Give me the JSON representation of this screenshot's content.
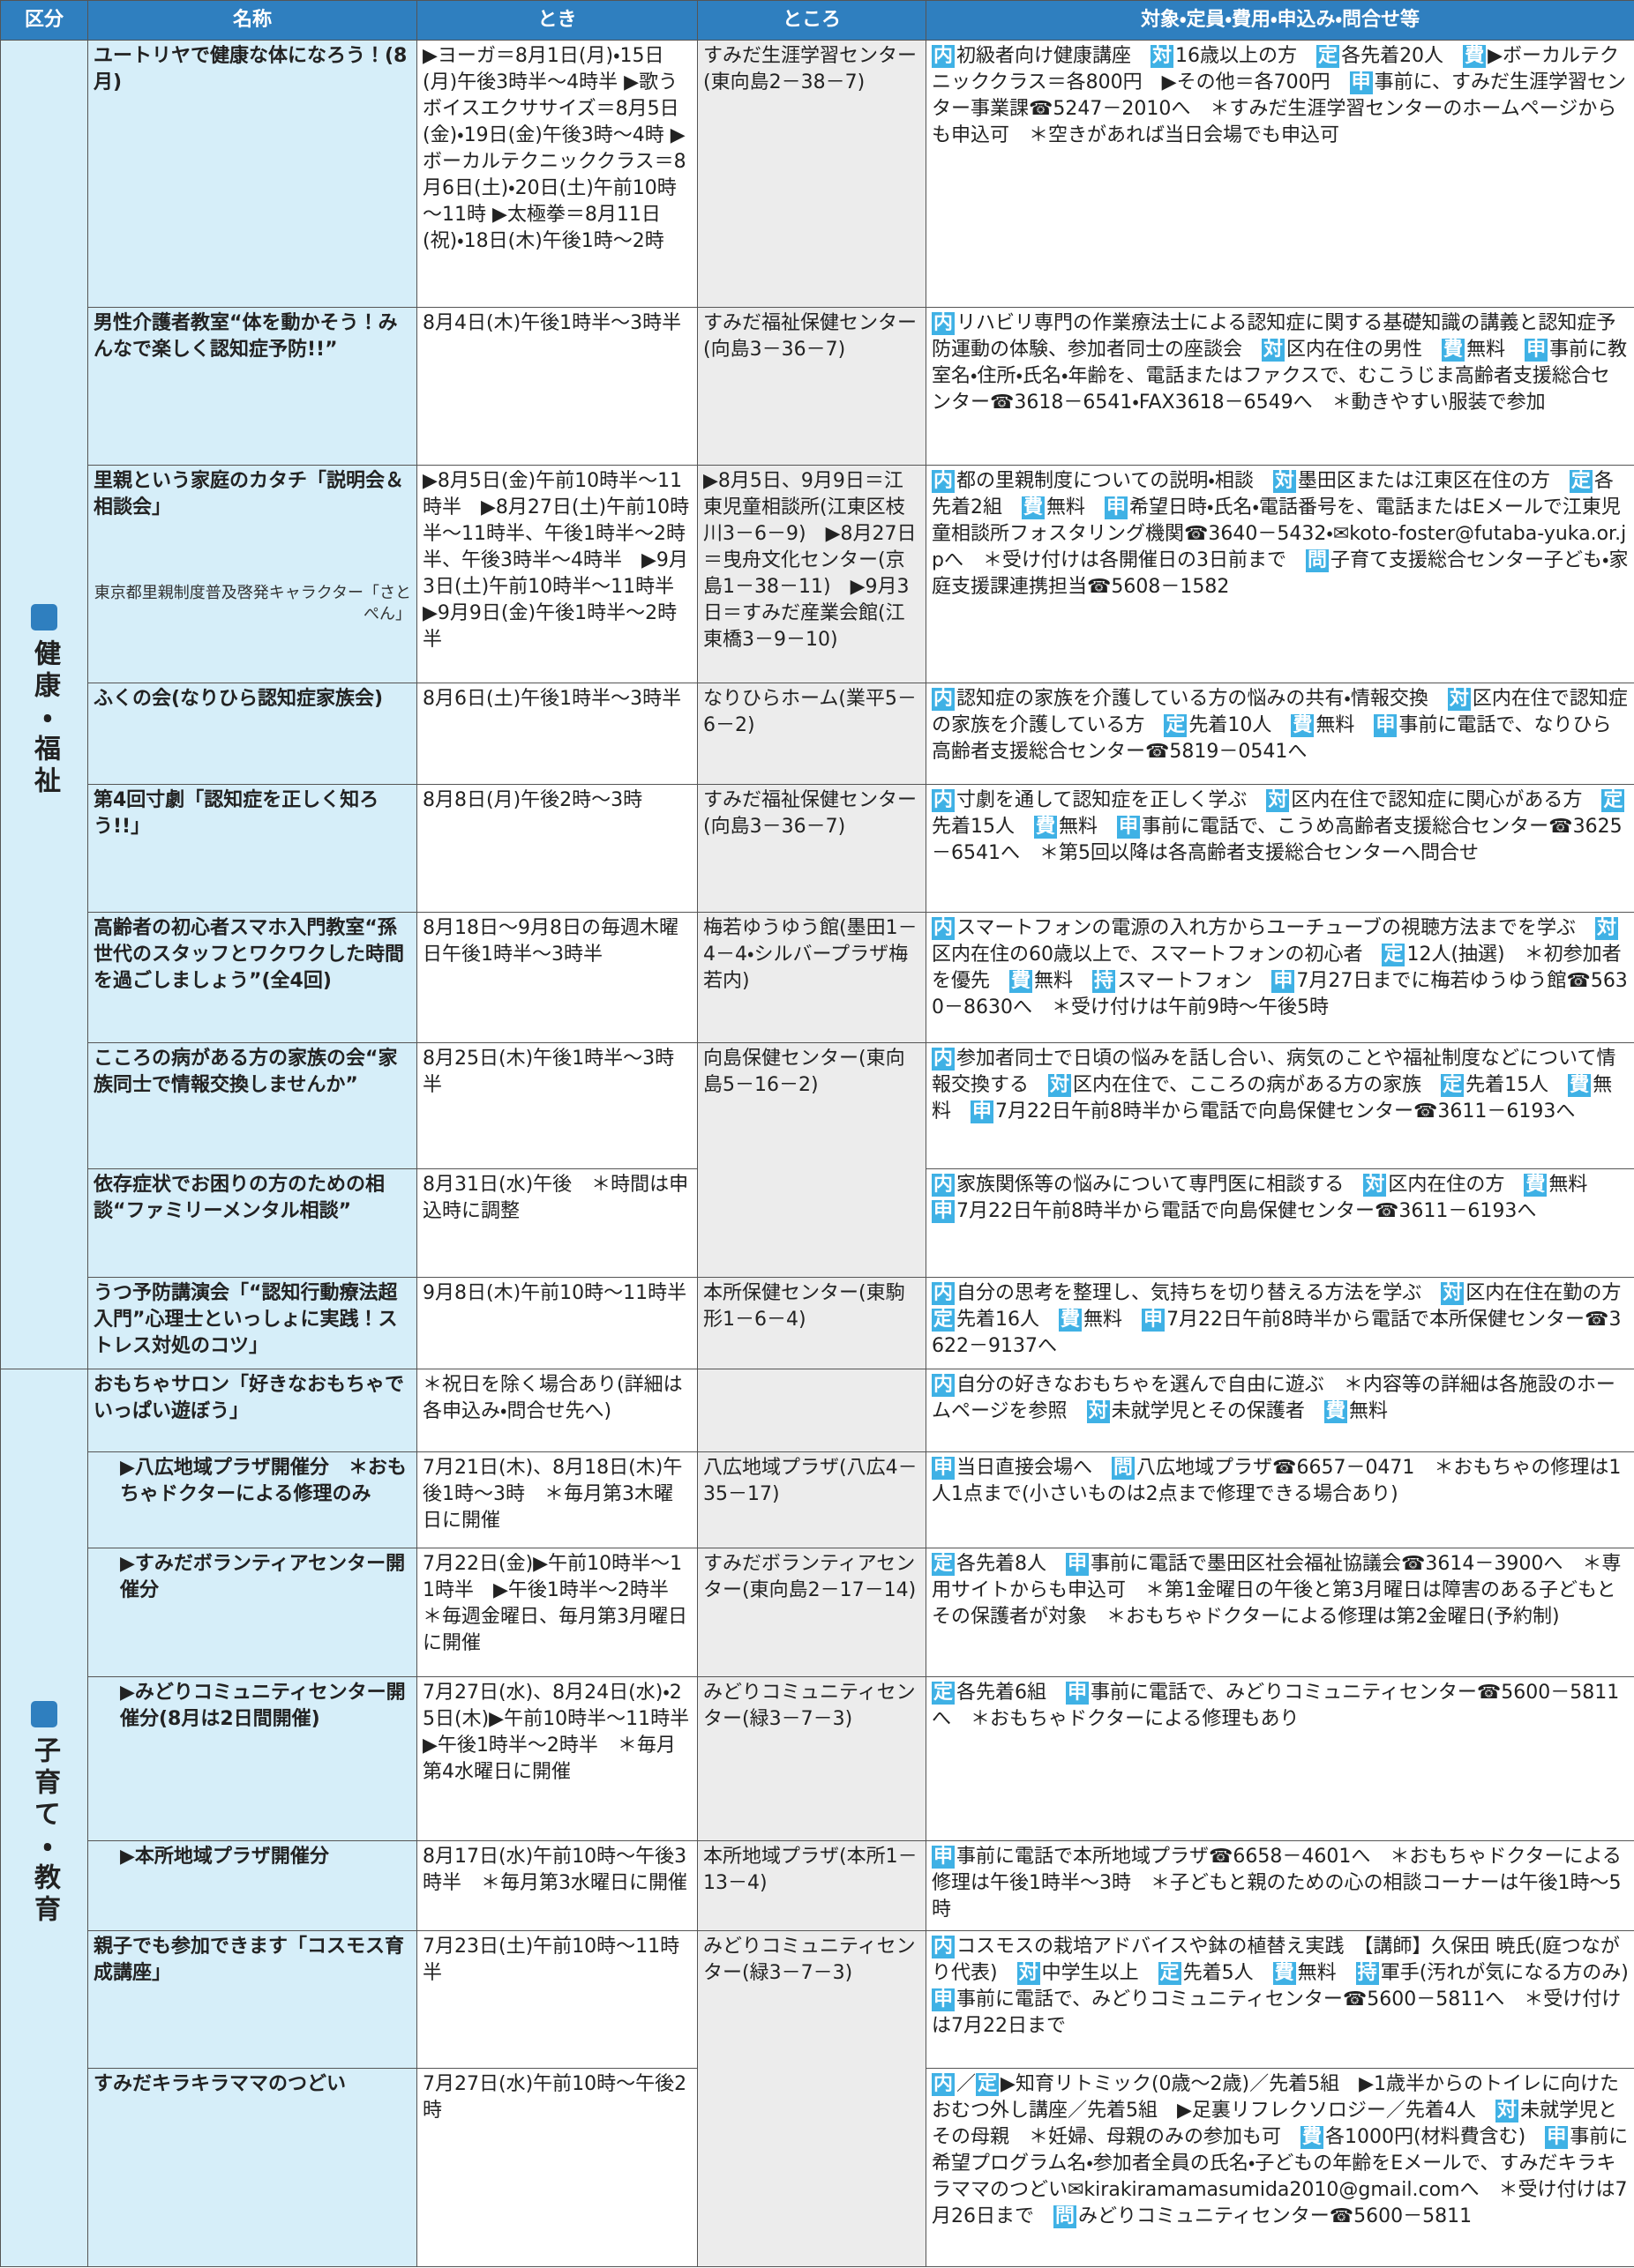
{
  "header": [
    "区分",
    "名称",
    "とき",
    "ところ",
    "対象・定員・費用・申込み・問合せ等"
  ],
  "sections": [
    {
      "label": "健康・福祉",
      "rows": [
        {
          "name": "ユートリヤで健康な体になろう！(8月)",
          "when": "▶ヨーガ＝8月1日(月)・15日(月)午後3時半～4時半 ▶歌うボイスエクササイズ＝8月5日(金)・19日(金)午後3時～4時 ▶ボーカルテクニッククラス＝8月6日(土)・20日(土)午前10時～11時 ▶太極拳＝8月11日(祝)・18日(木)午後1時～2時",
          "where": "すみだ生涯学習センター(東向島2－38－7)",
          "details": [
            [
              "内",
              "初級者向け健康講座　"
            ],
            [
              "対",
              "16歳以上の方　"
            ],
            [
              "定",
              "各先着20人　"
            ],
            [
              "費",
              "▶ボーカルテクニッククラス＝各800円　▶その他＝各700円　"
            ],
            [
              "申",
              "事前に、すみだ生涯学習センター事業課☎5247－2010へ　＊すみだ生涯学習センターのホームページからも申込可　＊空きがあれば当日会場でも申込可"
            ]
          ]
        },
        {
          "name": "男性介護者教室“体を動かそう！みんなで楽しく認知症予防!!”",
          "when": "8月4日(木)午後1時半～3時半",
          "where": "すみだ福祉保健センター(向島3－36－7)",
          "details": [
            [
              "内",
              "リハビリ専門の作業療法士による認知症に関する基礎知識の講義と認知症予防運動の体験、参加者同士の座談会　"
            ],
            [
              "対",
              "区内在住の男性　"
            ],
            [
              "費",
              "無料　"
            ],
            [
              "申",
              "事前に教室名・住所・氏名・年齢を、電話またはファクスで、むこうじま高齢者支援総合センター☎3618－6541・FAX3618－6549へ　＊動きやすい服装で参加"
            ]
          ]
        },
        {
          "name": "里親という家庭のカタチ「説明会＆相談会」",
          "caption": "東京都里親制度普及啓発キャラクター「さとぺん」",
          "when": "▶8月5日(金)午前10時半～11時半　▶8月27日(土)午前10時半～11時半、午後1時半～2時半、午後3時半～4時半　▶9月3日(土)午前10時半～11時半　▶9月9日(金)午後1時半～2時半",
          "where": "▶8月5日、9月9日＝江東児童相談所(江東区枝川3－6－9)　▶8月27日＝曳舟文化センター(京島1－38－11)　▶9月3日＝すみだ産業会館(江東橋3－9－10)",
          "details": [
            [
              "内",
              "都の里親制度についての説明・相談　"
            ],
            [
              "対",
              "墨田区または江東区在住の方　"
            ],
            [
              "定",
              "各先着2組　"
            ],
            [
              "費",
              "無料　"
            ],
            [
              "申",
              "希望日時・氏名・電話番号を、電話またはEメールで江東児童相談所フォスタリング機関☎3640－5432・✉koto-foster@futaba-yuka.or.jpへ　＊受け付けは各開催日の3日前まで　"
            ],
            [
              "問",
              "子育て支援総合センター子ども・家庭支援課連携担当☎5608－1582"
            ]
          ]
        },
        {
          "name": "ふくの会(なりひら認知症家族会)",
          "when": "8月6日(土)午後1時半～3時半",
          "where": "なりひらホーム(業平5－6－2)",
          "details": [
            [
              "内",
              "認知症の家族を介護している方の悩みの共有・情報交換　"
            ],
            [
              "対",
              "区内在住で認知症の家族を介護している方　"
            ],
            [
              "定",
              "先着10人　"
            ],
            [
              "費",
              "無料　"
            ],
            [
              "申",
              "事前に電話で、なりひら高齢者支援総合センター☎5819－0541へ"
            ]
          ]
        },
        {
          "name": "第4回寸劇「認知症を正しく知ろう!!」",
          "when": "8月8日(月)午後2時～3時",
          "where": "すみだ福祉保健センター(向島3－36－7)",
          "details": [
            [
              "内",
              "寸劇を通して認知症を正しく学ぶ　"
            ],
            [
              "対",
              "区内在住で認知症に関心がある方　"
            ],
            [
              "定",
              "先着15人　"
            ],
            [
              "費",
              "無料　"
            ],
            [
              "申",
              "事前に電話で、こうめ高齢者支援総合センター☎3625－6541へ　＊第5回以降は各高齢者支援総合センターへ問合せ"
            ]
          ]
        },
        {
          "name": "高齢者の初心者スマホ入門教室“孫世代のスタッフとワクワクした時間を過ごしましょう”(全4回)",
          "when": "8月18日～9月8日の毎週木曜日午後1時半～3時半",
          "where": "梅若ゆうゆう館(墨田1－4－4・シルバープラザ梅若内)",
          "details": [
            [
              "内",
              "スマートフォンの電源の入れ方からユーチューブの視聴方法までを学ぶ　"
            ],
            [
              "対",
              "区内在住の60歳以上で、スマートフォンの初心者　"
            ],
            [
              "定",
              "12人(抽選)　＊初参加者を優先　"
            ],
            [
              "費",
              "無料　"
            ],
            [
              "持",
              "スマートフォン　"
            ],
            [
              "申",
              "7月27日までに梅若ゆうゆう館☎5630－8630へ　＊受け付けは午前9時～午後5時"
            ]
          ]
        },
        {
          "name": "こころの病がある方の家族の会“家族同士で情報交換しませんか”",
          "when": "8月25日(木)午後1時半～3時半",
          "where": "向島保健センター(東向島5－16－2)",
          "details": [
            [
              "内",
              "参加者同士で日頃の悩みを話し合い、病気のことや福祉制度などについて情報交換する　"
            ],
            [
              "対",
              "区内在住で、こころの病がある方の家族　"
            ],
            [
              "定",
              "先着15人　"
            ],
            [
              "費",
              "無料　"
            ],
            [
              "申",
              "7月22日午前8時半から電話で向島保健センター☎3611－6193へ"
            ]
          ]
        },
        {
          "name": "依存症状でお困りの方のための相談“ファミリーメンタル相談”",
          "when": "8月31日(水)午後　＊時間は申込時に調整",
          "details": [
            [
              "内",
              "家族関係等の悩みについて専門医に相談する　"
            ],
            [
              "対",
              "区内在住の方　"
            ],
            [
              "費",
              "無料　"
            ],
            [
              "申",
              "7月22日午前8時半から電話で向島保健センター☎3611－6193へ"
            ]
          ]
        },
        {
          "name": "うつ予防講演会「“認知行動療法超入門”心理士といっしょに実践！ストレス対処のコツ」",
          "when": "9月8日(木)午前10時～11時半",
          "where": "本所保健センター(東駒形1－6－4)",
          "details": [
            [
              "内",
              "自分の思考を整理し、気持ちを切り替える方法を学ぶ　"
            ],
            [
              "対",
              "区内在住在勤の方　"
            ],
            [
              "定",
              "先着16人　"
            ],
            [
              "費",
              "無料　"
            ],
            [
              "申",
              "7月22日午前8時半から電話で本所保健センター☎3622－9137へ"
            ]
          ]
        }
      ]
    },
    {
      "label": "子育て・教育",
      "rows": [
        {
          "name": "おもちゃサロン「好きなおもちゃでいっぱい遊ぼう」",
          "when": "＊祝日を除く場合あり(詳細は各申込み・問合せ先へ)",
          "details": [
            [
              "内",
              "自分の好きなおもちゃを選んで自由に遊ぶ　＊内容等の詳細は各施設のホームページを参照　"
            ],
            [
              "対",
              "未就学児とその保護者　"
            ],
            [
              "費",
              "無料"
            ]
          ]
        },
        {
          "name": "▶八広地域プラザ開催分　＊おもちゃドクターによる修理のみ",
          "when": "7月21日(木)、8月18日(木)午後1時～3時　＊毎月第3木曜日に開催",
          "where": "八広地域プラザ(八広4－35－17)",
          "details": [
            [
              "申",
              "当日直接会場へ　"
            ],
            [
              "問",
              "八広地域プラザ☎6657－0471　＊おもちゃの修理は1人1点まで(小さいものは2点まで修理できる場合あり)"
            ]
          ]
        },
        {
          "name": "▶すみだボランティアセンター開催分",
          "when": "7月22日(金)▶午前10時半～11時半　▶午後1時半～2時半　＊毎週金曜日、毎月第3月曜日に開催",
          "where": "すみだボランティアセンター(東向島2－17－14)",
          "details": [
            [
              "定",
              "各先着8人　"
            ],
            [
              "申",
              "事前に電話で墨田区社会福祉協議会☎3614－3900へ　＊専用サイトからも申込可　＊第1金曜日の午後と第3月曜日は障害のある子どもとその保護者が対象　＊おもちゃドクターによる修理は第2金曜日(予約制)"
            ]
          ]
        },
        {
          "name": "▶みどりコミュニティセンター開催分(8月は2日間開催)",
          "when": "7月27日(水)、8月24日(水)・25日(木)▶午前10時半～11時半　▶午後1時半～2時半　＊毎月第4水曜日に開催",
          "where": "みどりコミュニティセンター(緑3－7－3)",
          "details": [
            [
              "定",
              "各先着6組　"
            ],
            [
              "申",
              "事前に電話で、みどりコミュニティセンター☎5600－5811へ　＊おもちゃドクターによる修理もあり"
            ]
          ]
        },
        {
          "name": "▶本所地域プラザ開催分",
          "when": "8月17日(水)午前10時～午後3時半　＊毎月第3水曜日に開催",
          "where": "本所地域プラザ(本所1－13－4)",
          "details": [
            [
              "申",
              "事前に電話で本所地域プラザ☎6658－4601へ　＊おもちゃドクターによる修理は午後1時半～3時　＊子どもと親のための心の相談コーナーは午後1時～5時"
            ]
          ]
        },
        {
          "name": "親子でも参加できます「コスモス育成講座」",
          "when": "7月23日(土)午前10時～11時半",
          "where": "みどりコミュニティセンター(緑3－7－3)",
          "details": [
            [
              "内",
              "コスモスの栽培アドバイスや鉢の植替え実践　【講師】久保田 暁氏(庭つながり代表)　"
            ],
            [
              "対",
              "中学生以上　"
            ],
            [
              "定",
              "先着5人　"
            ],
            [
              "費",
              "無料　"
            ],
            [
              "持",
              "軍手(汚れが気になる方のみ)　"
            ],
            [
              "申",
              "事前に電話で、みどりコミュニティセンター☎5600－5811へ　＊受け付けは7月22日まで"
            ]
          ]
        },
        {
          "name": "すみだキラキラママのつどい",
          "when": "7月27日(水)午前10時～午後2時",
          "details": [
            [
              "内",
              "／"
            ],
            [
              "定",
              "▶知育リトミック(0歳～2歳)／先着5組　▶1歳半からのトイレに向けたおむつ外し講座／先着5組　▶足裏リフレクソロジー／先着4人　"
            ],
            [
              "対",
              "未就学児とその母親　＊妊婦、母親のみの参加も可　"
            ],
            [
              "費",
              "各1000円(材料費含む)　"
            ],
            [
              "申",
              "事前に希望プログラム名・参加者全員の氏名・子どもの年齢をEメールで、すみだキラキラママのつどい✉kirakiramamasumida2010@gmail.comへ　＊受け付けは7月26日まで　"
            ],
            [
              "問",
              "みどりコミュニティセンター☎5600－5811"
            ]
          ]
        }
      ]
    }
  ]
}
